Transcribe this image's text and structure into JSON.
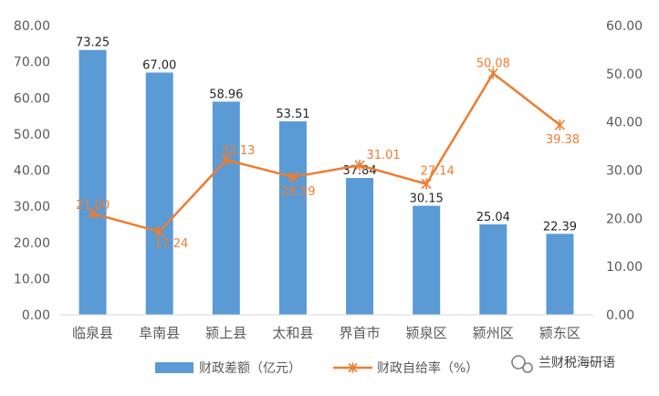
{
  "chart_data": {
    "type": "bar",
    "categories": [
      "临泉县",
      "阜南县",
      "颍上县",
      "太和县",
      "界首市",
      "颍泉区",
      "颍州区",
      "颍东区"
    ],
    "series": [
      {
        "name": "财政差额（亿元）",
        "type": "bar",
        "axis": "left",
        "values": [
          73.25,
          67.0,
          58.96,
          53.51,
          37.84,
          30.15,
          25.04,
          22.39
        ],
        "labels": [
          "73.25",
          "67.00",
          "58.96",
          "53.51",
          "37.84",
          "30.15",
          "25.04",
          "22.39"
        ],
        "color": "#5B9BD5"
      },
      {
        "name": "财政自给率（%）",
        "type": "line",
        "axis": "right",
        "values": [
          21.0,
          17.24,
          32.13,
          28.59,
          31.01,
          27.14,
          50.08,
          39.38
        ],
        "labels": [
          "21.00",
          "17.24",
          "32.13",
          "28.59",
          "31.01",
          "27.14",
          "50.08",
          "39.38"
        ],
        "color": "#ED7D31"
      }
    ],
    "y_left": {
      "min": 0,
      "max": 80,
      "ticks": [
        "0.00",
        "10.00",
        "20.00",
        "30.00",
        "40.00",
        "50.00",
        "60.00",
        "70.00",
        "80.00"
      ]
    },
    "y_right": {
      "min": 0,
      "max": 60,
      "ticks": [
        "0.00",
        "10.00",
        "20.00",
        "30.00",
        "40.00",
        "50.00",
        "60.00"
      ]
    },
    "grid": false,
    "legend_position": "bottom"
  },
  "watermark": {
    "text": "兰财税海研语"
  }
}
